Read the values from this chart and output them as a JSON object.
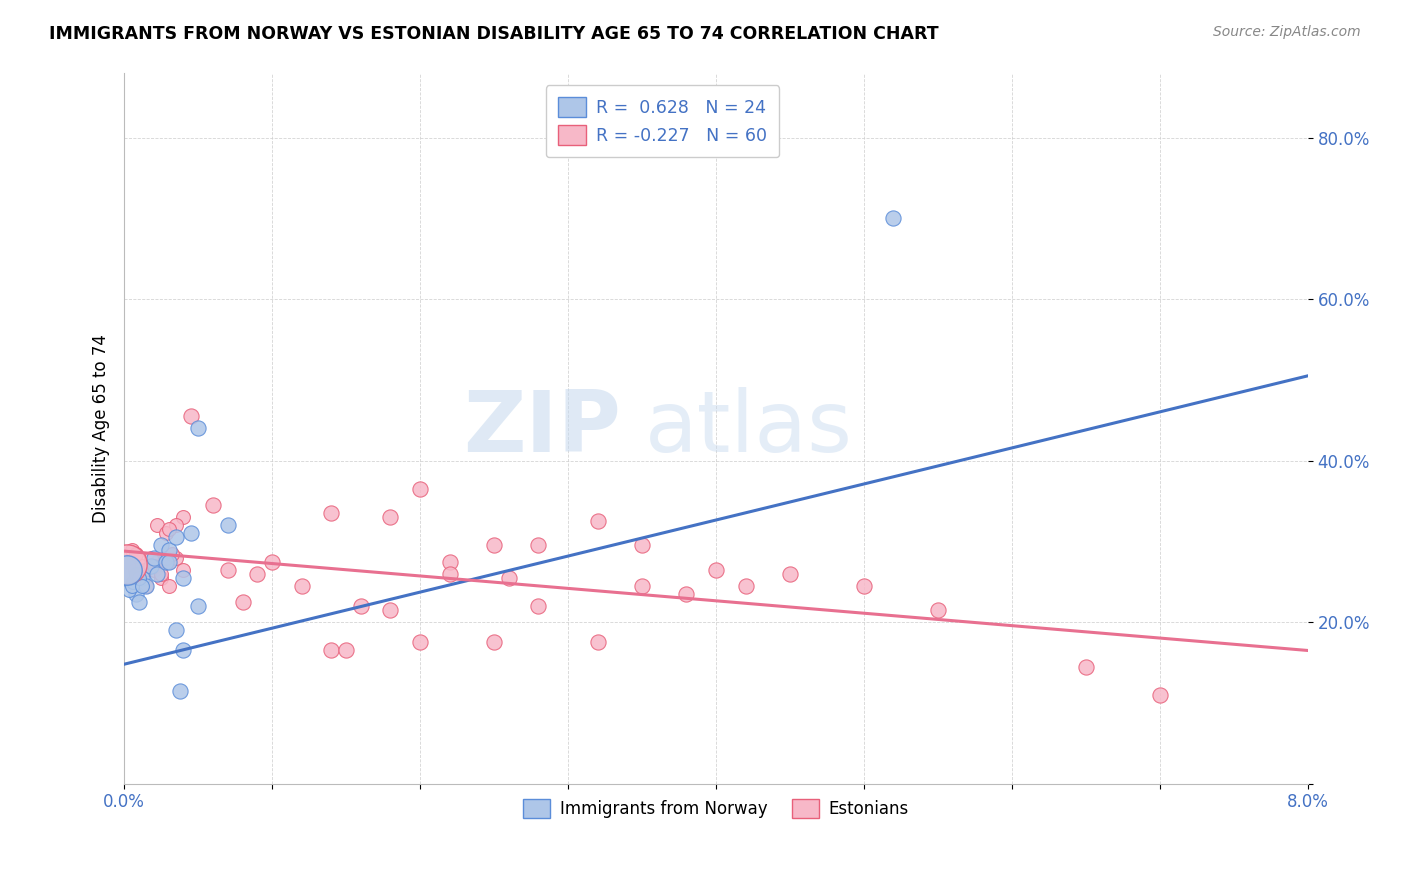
{
  "title": "IMMIGRANTS FROM NORWAY VS ESTONIAN DISABILITY AGE 65 TO 74 CORRELATION CHART",
  "source": "Source: ZipAtlas.com",
  "ylabel": "Disability Age 65 to 74",
  "xlim": [
    0.0,
    0.08
  ],
  "ylim": [
    0.0,
    0.88
  ],
  "xticks": [
    0.0,
    0.01,
    0.02,
    0.03,
    0.04,
    0.05,
    0.06,
    0.07,
    0.08
  ],
  "xtick_labels": [
    "0.0%",
    "",
    "",
    "",
    "",
    "",
    "",
    "",
    "8.0%"
  ],
  "yticks": [
    0.0,
    0.2,
    0.4,
    0.6,
    0.8
  ],
  "ytick_labels": [
    "",
    "20.0%",
    "40.0%",
    "60.0%",
    "80.0%"
  ],
  "legend_r_norway": "0.628",
  "legend_n_norway": "24",
  "legend_r_estonian": "-0.227",
  "legend_n_estonian": "60",
  "norway_color": "#aec6e8",
  "estonian_color": "#f7b8c8",
  "norway_edge_color": "#5b8dd9",
  "estonian_edge_color": "#e8607a",
  "norway_line_color": "#4472c4",
  "estonian_line_color": "#e87090",
  "watermark_zip": "ZIP",
  "watermark_atlas": "atlas",
  "norway_scatter_x": [
    0.0012,
    0.0018,
    0.0008,
    0.001,
    0.0015,
    0.0022,
    0.002,
    0.0025,
    0.003,
    0.0028,
    0.0035,
    0.003,
    0.004,
    0.0045,
    0.005,
    0.0035,
    0.004,
    0.005,
    0.007,
    0.052,
    0.0038
  ],
  "norway_scatter_y": [
    0.255,
    0.27,
    0.235,
    0.225,
    0.245,
    0.26,
    0.28,
    0.295,
    0.29,
    0.275,
    0.305,
    0.275,
    0.255,
    0.31,
    0.22,
    0.19,
    0.165,
    0.44,
    0.32,
    0.7,
    0.115
  ],
  "norway_cluster_x": [
    0.0003,
    0.0006,
    0.0005,
    0.0008,
    0.001,
    0.0012
  ],
  "norway_cluster_y": [
    0.24,
    0.25,
    0.245,
    0.26,
    0.255,
    0.245
  ],
  "estonian_scatter_x": [
    0.0045,
    0.006,
    0.007,
    0.008,
    0.009,
    0.01,
    0.012,
    0.014,
    0.016,
    0.018,
    0.02,
    0.022,
    0.025,
    0.028,
    0.032,
    0.035,
    0.038,
    0.04,
    0.042,
    0.045,
    0.05,
    0.055,
    0.065,
    0.07,
    0.014,
    0.018,
    0.022,
    0.026,
    0.028,
    0.032,
    0.035,
    0.015,
    0.02,
    0.025
  ],
  "estonian_scatter_y": [
    0.455,
    0.345,
    0.265,
    0.225,
    0.26,
    0.275,
    0.245,
    0.165,
    0.22,
    0.215,
    0.365,
    0.275,
    0.295,
    0.295,
    0.325,
    0.295,
    0.235,
    0.265,
    0.245,
    0.26,
    0.245,
    0.215,
    0.145,
    0.11,
    0.335,
    0.33,
    0.26,
    0.255,
    0.22,
    0.175,
    0.245,
    0.165,
    0.175,
    0.175
  ],
  "estonian_cluster_x": [
    0.0003,
    0.0005,
    0.0007,
    0.001,
    0.0012,
    0.0015,
    0.0018,
    0.002,
    0.0022,
    0.0025,
    0.003,
    0.0008,
    0.0014,
    0.0018,
    0.002,
    0.0025,
    0.003,
    0.0035,
    0.004,
    0.0028,
    0.0032,
    0.0022,
    0.0028,
    0.004,
    0.0035,
    0.003
  ],
  "estonian_cluster_y": [
    0.275,
    0.29,
    0.265,
    0.255,
    0.27,
    0.245,
    0.27,
    0.265,
    0.275,
    0.255,
    0.245,
    0.285,
    0.265,
    0.28,
    0.27,
    0.26,
    0.275,
    0.28,
    0.265,
    0.28,
    0.285,
    0.32,
    0.31,
    0.33,
    0.32,
    0.315
  ],
  "norway_big_cluster_x": [
    0.0002
  ],
  "norway_big_cluster_y": [
    0.265
  ],
  "norway_big_cluster_size": [
    450
  ],
  "estonian_big_cluster_x": [
    0.0002
  ],
  "estonian_big_cluster_y": [
    0.272
  ],
  "estonian_big_cluster_size": [
    800
  ],
  "norway_line_x0": 0.0,
  "norway_line_y0": 0.148,
  "norway_line_x1": 0.08,
  "norway_line_y1": 0.505,
  "estonian_line_x0": 0.0,
  "estonian_line_y0": 0.288,
  "estonian_line_x1": 0.08,
  "estonian_line_y1": 0.165,
  "scatter_size": 120,
  "cluster_size": 100
}
